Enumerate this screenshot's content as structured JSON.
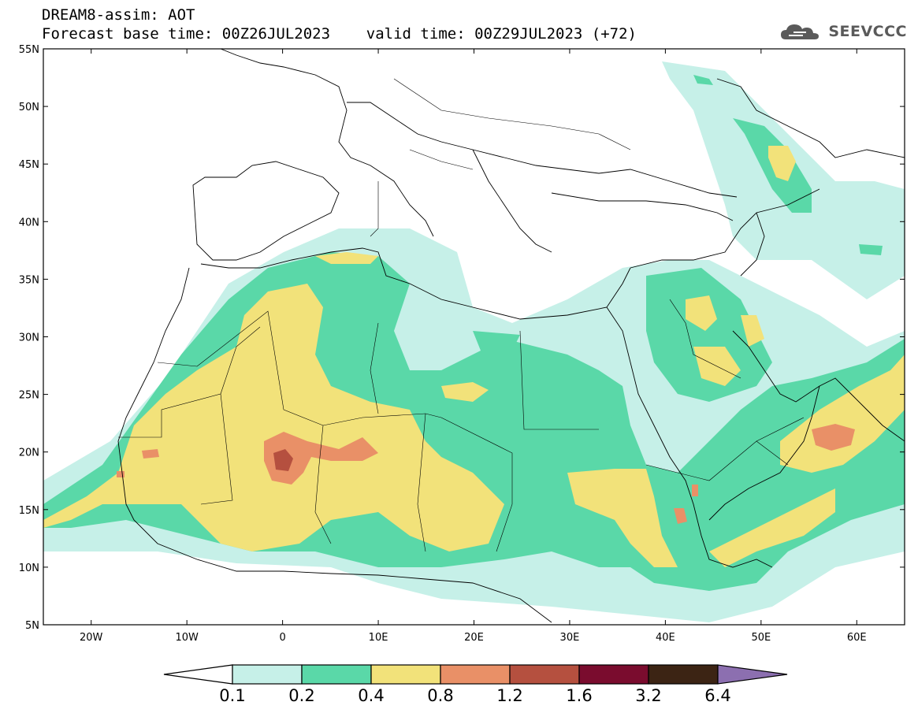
{
  "header": {
    "line1": "DREAM8-assim: AOT",
    "line2": "Forecast base time: 00Z26JUL2023    valid time: 00Z29JUL2023 (+72)",
    "logo_text": "SEEVCCC"
  },
  "axes": {
    "lat_labels": [
      "55N",
      "50N",
      "45N",
      "40N",
      "35N",
      "30N",
      "25N",
      "20N",
      "15N",
      "10N",
      "5N"
    ],
    "lon_labels": [
      "20W",
      "10W",
      "0",
      "10E",
      "20E",
      "30E",
      "40E",
      "50E",
      "60E"
    ]
  },
  "colorbar": {
    "labels": [
      "0.1",
      "0.2",
      "0.4",
      "0.8",
      "1.2",
      "1.6",
      "3.2",
      "6.4"
    ],
    "colors": [
      "#c6f0e8",
      "#5ad8a8",
      "#f2e27a",
      "#e99067",
      "#b5503f",
      "#7a0c2e",
      "#3c2414",
      "#8c6fb0"
    ]
  },
  "map_data": {
    "projection": "equirectangular",
    "lon_range": [
      -25,
      65
    ],
    "lat_range": [
      5,
      55
    ],
    "variable": "AOT",
    "levels": [
      0.1,
      0.2,
      0.4,
      0.8,
      1.2,
      1.6,
      3.2,
      6.4
    ]
  }
}
